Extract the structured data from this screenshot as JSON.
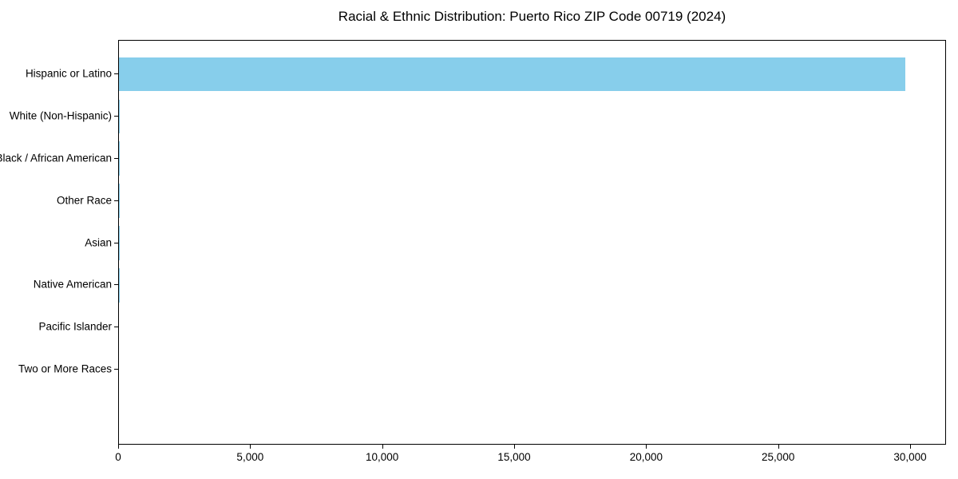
{
  "chart_data": {
    "type": "bar",
    "orientation": "horizontal",
    "title": "Racial & Ethnic Distribution: Puerto Rico ZIP Code 00719 (2024)",
    "categories": [
      "Hispanic or Latino",
      "White (Non-Hispanic)",
      "Black / African American",
      "Other Race",
      "Asian",
      "Native American",
      "Pacific Islander",
      "Two or More Races"
    ],
    "values": [
      29860,
      40,
      15,
      10,
      5,
      5,
      0,
      0
    ],
    "bar_color": "#87CEEB",
    "xlabel": "",
    "ylabel": "",
    "xlim": [
      0,
      31360
    ],
    "x_ticks": [
      0,
      5000,
      10000,
      15000,
      20000,
      25000,
      30000
    ],
    "x_tick_labels": [
      "0",
      "5,000",
      "10,000",
      "15,000",
      "20,000",
      "25,000",
      "30,000"
    ],
    "grid": false,
    "legend": null,
    "text_color": "#000000",
    "spine_color": "#000000"
  }
}
